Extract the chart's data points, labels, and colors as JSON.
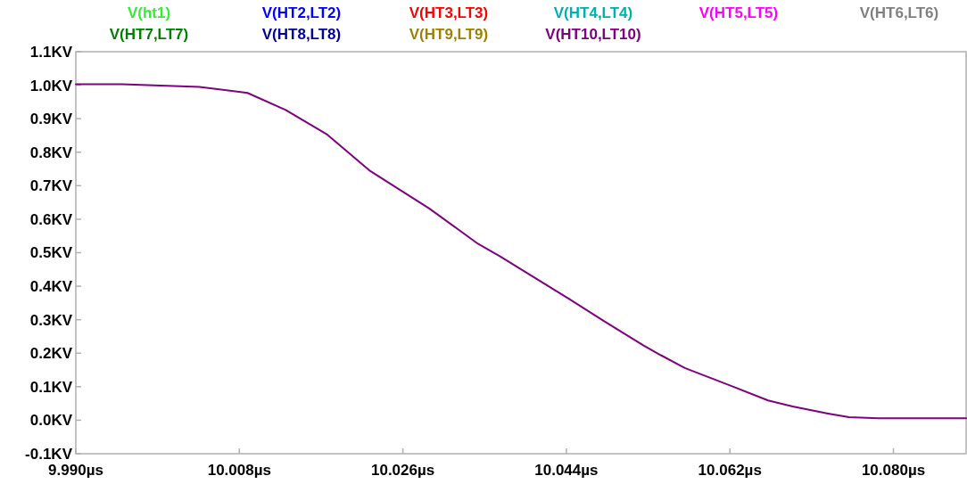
{
  "chart_data": {
    "type": "line",
    "legend": "top",
    "grid": false,
    "line_style": "solid",
    "marker": "none",
    "x": [
      9.99,
      9.9951,
      10.0036,
      10.0089,
      10.0131,
      10.0177,
      10.0223,
      10.0289,
      10.0343,
      10.0367,
      10.0443,
      10.0482,
      10.0525,
      10.0544,
      10.0571,
      10.062,
      10.0662,
      10.0689,
      10.0728,
      10.0751,
      10.0783,
      10.088
    ],
    "xlim": [
      9.99,
      10.088
    ],
    "xticks": [
      {
        "value": 9.99,
        "label": "9.990µs"
      },
      {
        "value": 10.008,
        "label": "10.008µs"
      },
      {
        "value": 10.026,
        "label": "10.026µs"
      },
      {
        "value": 10.044,
        "label": "10.044µs"
      },
      {
        "value": 10.062,
        "label": "10.062µs"
      },
      {
        "value": 10.08,
        "label": "10.080µs"
      }
    ],
    "ylim": [
      -0.1,
      1.1
    ],
    "yticks": [
      {
        "value": -0.1,
        "label": "-0.1KV"
      },
      {
        "value": 0,
        "label": "0.0KV"
      },
      {
        "value": 0.1,
        "label": "0.1KV"
      },
      {
        "value": 0.2,
        "label": "0.2KV"
      },
      {
        "value": 0.3,
        "label": "0.3KV"
      },
      {
        "value": 0.4,
        "label": "0.4KV"
      },
      {
        "value": 0.5,
        "label": "0.5KV"
      },
      {
        "value": 0.6,
        "label": "0.6KV"
      },
      {
        "value": 0.7,
        "label": "0.7KV"
      },
      {
        "value": 0.8,
        "label": "0.8KV"
      },
      {
        "value": 0.9,
        "label": "0.9KV"
      },
      {
        "value": 1.0,
        "label": "1.0KV"
      },
      {
        "value": 1.1,
        "label": "1.1KV"
      }
    ],
    "series": [
      {
        "name": "V(ht1)",
        "color": "#33ee33",
        "values": [
          null,
          null,
          null,
          null,
          null,
          null,
          null,
          null,
          null,
          null,
          null,
          null,
          null,
          null,
          null,
          null,
          null,
          null,
          null,
          null,
          null,
          null
        ]
      },
      {
        "name": "V(HT2,LT2)",
        "color": "#0000ff",
        "values": [
          null,
          null,
          null,
          null,
          null,
          null,
          null,
          null,
          null,
          null,
          null,
          null,
          null,
          null,
          null,
          null,
          null,
          null,
          null,
          null,
          null,
          null
        ]
      },
      {
        "name": "V(HT3,LT3)",
        "color": "#ff0000",
        "values": [
          null,
          null,
          null,
          null,
          null,
          null,
          null,
          null,
          null,
          null,
          null,
          null,
          null,
          null,
          null,
          null,
          null,
          null,
          null,
          null,
          null,
          null
        ]
      },
      {
        "name": "V(HT4,LT4)",
        "color": "#00b0b0",
        "values": [
          null,
          null,
          null,
          null,
          null,
          null,
          null,
          null,
          null,
          null,
          null,
          null,
          null,
          null,
          null,
          null,
          null,
          null,
          null,
          null,
          null,
          null
        ]
      },
      {
        "name": "V(HT5,LT5)",
        "color": "#ff00ff",
        "values": [
          null,
          null,
          null,
          null,
          null,
          null,
          null,
          null,
          null,
          null,
          null,
          null,
          null,
          null,
          null,
          null,
          null,
          null,
          null,
          null,
          null,
          null
        ]
      },
      {
        "name": "V(HT6,LT6)",
        "color": "#808080",
        "values": [
          null,
          null,
          null,
          null,
          null,
          null,
          null,
          null,
          null,
          null,
          null,
          null,
          null,
          null,
          null,
          null,
          null,
          null,
          null,
          null,
          null,
          null
        ]
      },
      {
        "name": "V(HT7,LT7)",
        "color": "#008000",
        "values": [
          null,
          null,
          null,
          null,
          null,
          null,
          null,
          null,
          null,
          null,
          null,
          null,
          null,
          null,
          null,
          null,
          null,
          null,
          null,
          null,
          null,
          null
        ]
      },
      {
        "name": "V(HT8,LT8)",
        "color": "#000098",
        "values": [
          null,
          null,
          null,
          null,
          null,
          null,
          null,
          null,
          null,
          null,
          null,
          null,
          null,
          null,
          null,
          null,
          null,
          null,
          null,
          null,
          null,
          null
        ]
      },
      {
        "name": "V(HT9,LT9)",
        "color": "#a08000",
        "values": [
          null,
          null,
          null,
          null,
          null,
          null,
          null,
          null,
          null,
          null,
          null,
          null,
          null,
          null,
          null,
          null,
          null,
          null,
          null,
          null,
          null,
          null
        ]
      },
      {
        "name": "V(HT10,LT10)",
        "color": "#800080",
        "values": [
          1.003,
          1.003,
          0.995,
          0.977,
          0.926,
          0.852,
          0.746,
          0.632,
          0.526,
          0.489,
          0.362,
          0.295,
          0.223,
          0.194,
          0.155,
          0.104,
          0.059,
          0.041,
          0.02,
          0.009,
          0.006,
          0.006
        ]
      }
    ]
  }
}
